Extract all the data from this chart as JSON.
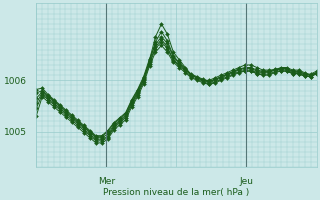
{
  "title": "Pression niveau de la mer( hPa )",
  "bg_color": "#cce8e8",
  "line_color": "#1a5c1a",
  "grid_color": "#99cccc",
  "xtick_labels": [
    "",
    "Mer",
    "",
    "Jeu",
    ""
  ],
  "xtick_positions": [
    0,
    12,
    24,
    36,
    48
  ],
  "ytick_labels": [
    "1005",
    "1006"
  ],
  "ytick_positions": [
    1005.0,
    1006.0
  ],
  "xlim": [
    0,
    48
  ],
  "ylim": [
    1004.3,
    1007.5
  ],
  "series": [
    [
      1005.55,
      1005.75,
      1005.65,
      1005.55,
      1005.45,
      1005.35,
      1005.25,
      1005.15,
      1005.05,
      1004.95,
      1004.85,
      1004.85,
      1004.9,
      1005.1,
      1005.2,
      1005.3,
      1005.55,
      1005.75,
      1006.0,
      1006.4,
      1006.85,
      1007.1,
      1006.9,
      1006.55,
      1006.4,
      1006.25,
      1006.1,
      1006.05,
      1006.0,
      1006.0,
      1006.05,
      1006.1,
      1006.15,
      1006.2,
      1006.25,
      1006.3,
      1006.3,
      1006.25,
      1006.2,
      1006.2,
      1006.2,
      1006.25,
      1006.25,
      1006.2,
      1006.2,
      1006.15,
      1006.1,
      1006.15
    ],
    [
      1005.75,
      1005.8,
      1005.7,
      1005.6,
      1005.5,
      1005.4,
      1005.3,
      1005.2,
      1005.1,
      1005.0,
      1004.9,
      1004.9,
      1005.0,
      1005.15,
      1005.25,
      1005.35,
      1005.6,
      1005.8,
      1006.05,
      1006.35,
      1006.65,
      1006.8,
      1006.65,
      1006.4,
      1006.3,
      1006.2,
      1006.1,
      1006.05,
      1006.0,
      1005.95,
      1006.0,
      1006.05,
      1006.1,
      1006.15,
      1006.2,
      1006.2,
      1006.2,
      1006.15,
      1006.15,
      1006.15,
      1006.2,
      1006.2,
      1006.2,
      1006.15,
      1006.15,
      1006.1,
      1006.1,
      1006.15
    ],
    [
      1005.65,
      1005.77,
      1005.68,
      1005.58,
      1005.48,
      1005.38,
      1005.28,
      1005.18,
      1005.08,
      1004.98,
      1004.88,
      1004.88,
      1004.95,
      1005.12,
      1005.22,
      1005.32,
      1005.57,
      1005.77,
      1006.02,
      1006.37,
      1006.75,
      1006.95,
      1006.77,
      1006.47,
      1006.35,
      1006.22,
      1006.1,
      1006.05,
      1006.0,
      1005.97,
      1006.02,
      1006.07,
      1006.12,
      1006.17,
      1006.22,
      1006.25,
      1006.25,
      1006.2,
      1006.17,
      1006.17,
      1006.2,
      1006.22,
      1006.22,
      1006.17,
      1006.17,
      1006.12,
      1006.1,
      1006.15
    ],
    [
      1005.82,
      1005.85,
      1005.72,
      1005.62,
      1005.52,
      1005.42,
      1005.32,
      1005.22,
      1005.12,
      1005.02,
      1004.92,
      1004.92,
      1005.02,
      1005.17,
      1005.27,
      1005.37,
      1005.62,
      1005.82,
      1006.07,
      1006.42,
      1006.7,
      1006.85,
      1006.72,
      1006.45,
      1006.33,
      1006.23,
      1006.12,
      1006.07,
      1006.02,
      1005.98,
      1006.02,
      1006.07,
      1006.12,
      1006.17,
      1006.22,
      1006.23,
      1006.23,
      1006.18,
      1006.18,
      1006.18,
      1006.22,
      1006.23,
      1006.23,
      1006.18,
      1006.18,
      1006.13,
      1006.12,
      1006.18
    ],
    [
      1005.45,
      1005.72,
      1005.62,
      1005.52,
      1005.42,
      1005.32,
      1005.22,
      1005.12,
      1005.02,
      1004.92,
      1004.82,
      1004.82,
      1004.88,
      1005.07,
      1005.17,
      1005.27,
      1005.52,
      1005.72,
      1005.97,
      1006.32,
      1006.62,
      1006.75,
      1006.62,
      1006.38,
      1006.28,
      1006.18,
      1006.07,
      1006.02,
      1005.97,
      1005.93,
      1005.97,
      1006.02,
      1006.07,
      1006.12,
      1006.17,
      1006.18,
      1006.18,
      1006.13,
      1006.12,
      1006.12,
      1006.17,
      1006.18,
      1006.18,
      1006.13,
      1006.13,
      1006.08,
      1006.07,
      1006.13
    ],
    [
      1005.3,
      1005.68,
      1005.58,
      1005.48,
      1005.38,
      1005.28,
      1005.18,
      1005.08,
      1004.98,
      1004.88,
      1004.78,
      1004.78,
      1004.85,
      1005.03,
      1005.13,
      1005.23,
      1005.48,
      1005.68,
      1005.93,
      1006.28,
      1006.55,
      1006.68,
      1006.55,
      1006.35,
      1006.25,
      1006.15,
      1006.05,
      1006.0,
      1005.95,
      1005.92,
      1005.95,
      1006.0,
      1006.05,
      1006.1,
      1006.15,
      1006.18,
      1006.18,
      1006.13,
      1006.1,
      1006.1,
      1006.15,
      1006.18,
      1006.18,
      1006.13,
      1006.13,
      1006.08,
      1006.07,
      1006.13
    ]
  ],
  "num_points": 48,
  "day_lines": [
    12,
    36
  ]
}
